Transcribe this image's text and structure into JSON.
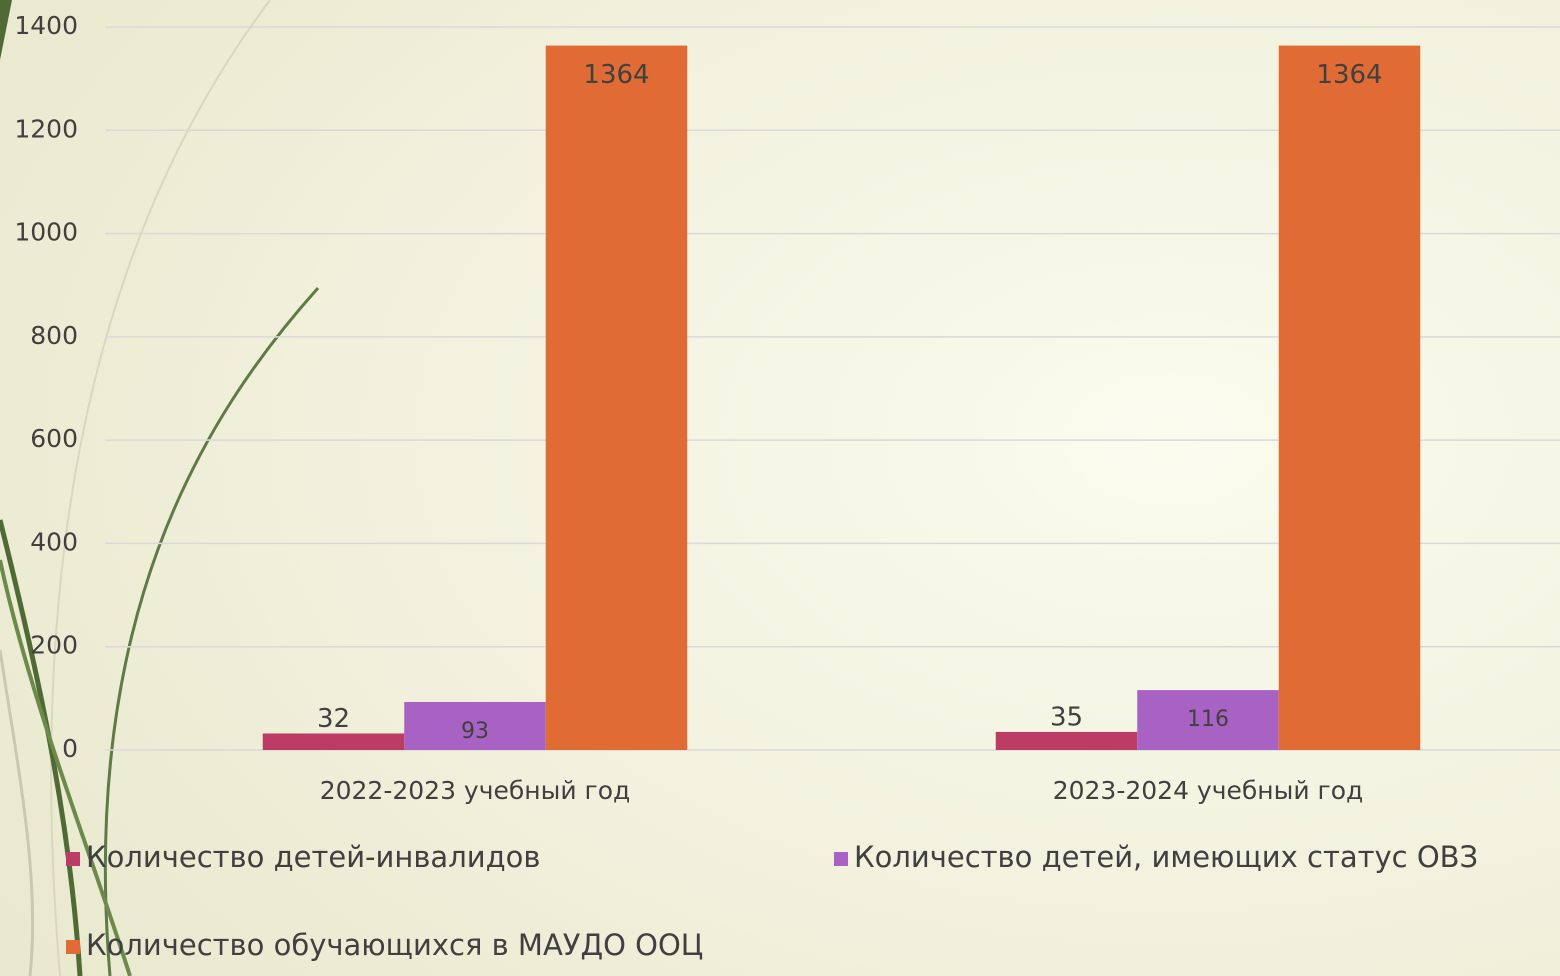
{
  "chart_data": {
    "type": "bar",
    "categories": [
      "2022-2023 учебный год",
      "2023-2024 учебный год"
    ],
    "series": [
      {
        "name": "Количество детей-инвалидов",
        "color": "#bc3c65",
        "values": [
          32,
          35
        ]
      },
      {
        "name": "Количество детей, имеющих статус ОВЗ",
        "color": "#a862c4",
        "values": [
          93,
          116
        ]
      },
      {
        "name": "Количество обучающихся в МАУДО ООЦ",
        "color": "#e06b35",
        "values": [
          1364,
          1364
        ]
      }
    ],
    "ylim": [
      0,
      1400
    ],
    "yticks": [
      0,
      200,
      400,
      600,
      800,
      1000,
      1200,
      1400
    ],
    "grid": true
  }
}
